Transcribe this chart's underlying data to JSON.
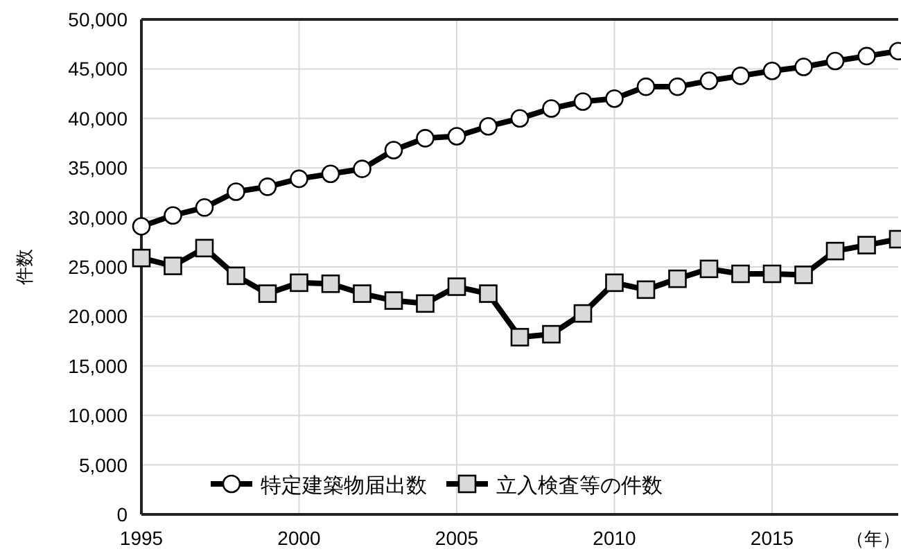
{
  "chart_data": {
    "type": "line",
    "x": [
      1995,
      1996,
      1997,
      1998,
      1999,
      2000,
      2001,
      2002,
      2003,
      2004,
      2005,
      2006,
      2007,
      2008,
      2009,
      2010,
      2011,
      2012,
      2013,
      2014,
      2015,
      2016,
      2017,
      2018,
      2019
    ],
    "series": [
      {
        "name": "特定建築物届出数",
        "color": "#000000",
        "marker": "circle",
        "values": [
          29100,
          30200,
          31000,
          32600,
          33100,
          33900,
          34400,
          34900,
          36800,
          38000,
          38200,
          39200,
          40000,
          41000,
          41700,
          42000,
          43200,
          43200,
          43800,
          44300,
          44800,
          45200,
          45800,
          46300,
          46800
        ]
      },
      {
        "name": "立入検査等の件数",
        "color": "#000000",
        "marker": "square",
        "values": [
          25900,
          25100,
          26900,
          24100,
          22300,
          23400,
          23300,
          22300,
          21600,
          21300,
          23000,
          22300,
          17900,
          18200,
          20300,
          23400,
          22700,
          23800,
          24800,
          24300,
          24300,
          24200,
          26600,
          27200,
          27800
        ]
      }
    ],
    "ylabel": "件数",
    "xlabel": "（年）",
    "xlim": [
      1995,
      2019
    ],
    "xticks": [
      1995,
      2000,
      2005,
      2010,
      2015
    ],
    "ylim": [
      0,
      50000
    ],
    "yticks": [
      {
        "value": 0,
        "label": "0"
      },
      {
        "value": 5000,
        "label": "5,000"
      },
      {
        "value": 10000,
        "label": "10,000"
      },
      {
        "value": 15000,
        "label": "15,000"
      },
      {
        "value": 20000,
        "label": "20,000"
      },
      {
        "value": 25000,
        "label": "25,000"
      },
      {
        "value": 30000,
        "label": "30,000"
      },
      {
        "value": 35000,
        "label": "35,000"
      },
      {
        "value": 40000,
        "label": "40,000"
      },
      {
        "value": 45000,
        "label": "45,000"
      },
      {
        "value": 50000,
        "label": "50,000"
      }
    ],
    "grid": true,
    "legend": "bottom",
    "line_style": "solid"
  }
}
